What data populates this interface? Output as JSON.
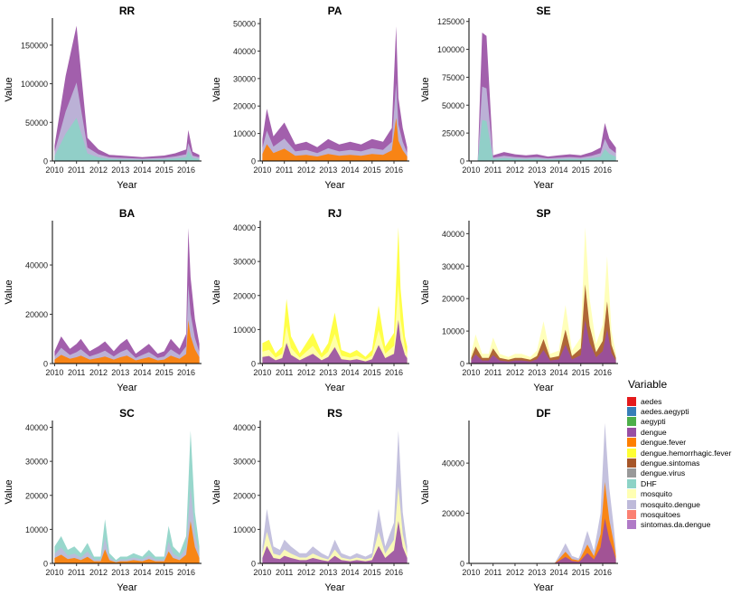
{
  "legend": {
    "title": "Variable",
    "items": [
      {
        "label": "aedes",
        "color": "#E41A1C"
      },
      {
        "label": "aedes.aegypti",
        "color": "#377EB8"
      },
      {
        "label": "aegypti",
        "color": "#4DAF4A"
      },
      {
        "label": "dengue",
        "color": "#984EA3"
      },
      {
        "label": "dengue.fever",
        "color": "#FF7F00"
      },
      {
        "label": "dengue.hemorrhagic.fever",
        "color": "#FFFF33"
      },
      {
        "label": "dengue.sintomas",
        "color": "#A65628"
      },
      {
        "label": "dengue.virus",
        "color": "#999999"
      },
      {
        "label": "DHF",
        "color": "#8DD3C7"
      },
      {
        "label": "mosquito",
        "color": "#FFFFB3"
      },
      {
        "label": "mosquito.dengue",
        "color": "#BEBADA"
      },
      {
        "label": "mosquitoes",
        "color": "#FB8072"
      },
      {
        "label": "sintomas.da.dengue",
        "color": "#B07AC7"
      }
    ]
  },
  "chart_data": [
    {
      "type": "area",
      "title": "RR",
      "xlabel": "Year",
      "ylabel": "Value",
      "xlim": [
        2009.9,
        2016.7
      ],
      "ylim": [
        0,
        185000
      ],
      "yticks": [
        0,
        50000,
        100000,
        150000
      ],
      "xticks": [
        "2010",
        "2011",
        "2012",
        "2013",
        "2014",
        "2015",
        "2016"
      ],
      "dominant": [
        "DHF",
        "mosquito.dengue",
        "dengue"
      ],
      "x": [
        2010.0,
        2010.5,
        2011.0,
        2011.5,
        2012.0,
        2012.5,
        2013.0,
        2013.5,
        2014.0,
        2014.5,
        2015.0,
        2015.5,
        2016.0,
        2016.1,
        2016.3,
        2016.6
      ],
      "y": [
        20000,
        110000,
        175000,
        30000,
        15000,
        8000,
        7000,
        6000,
        5000,
        6000,
        7000,
        10000,
        15000,
        40000,
        12000,
        8000
      ]
    },
    {
      "type": "area",
      "title": "PA",
      "xlabel": "Year",
      "ylabel": "Value",
      "xlim": [
        2009.9,
        2016.7
      ],
      "ylim": [
        0,
        52000
      ],
      "yticks": [
        0,
        10000,
        20000,
        30000,
        40000,
        50000
      ],
      "xticks": [
        "2010",
        "2011",
        "2012",
        "2013",
        "2014",
        "2015",
        "2016"
      ],
      "dominant": [
        "dengue.fever",
        "mosquito.dengue",
        "dengue"
      ],
      "x": [
        2010.0,
        2010.2,
        2010.5,
        2011.0,
        2011.5,
        2012.0,
        2012.5,
        2013.0,
        2013.5,
        2014.0,
        2014.5,
        2015.0,
        2015.5,
        2015.9,
        2016.1,
        2016.2,
        2016.4,
        2016.6
      ],
      "y": [
        8000,
        19000,
        9000,
        14000,
        6000,
        7000,
        5000,
        8000,
        6000,
        7000,
        6000,
        8000,
        7000,
        12000,
        49000,
        23000,
        12000,
        5000
      ]
    },
    {
      "type": "area",
      "title": "SE",
      "xlabel": "Year",
      "ylabel": "Value",
      "xlim": [
        2009.9,
        2016.7
      ],
      "ylim": [
        0,
        128000
      ],
      "yticks": [
        0,
        25000,
        50000,
        75000,
        100000,
        125000
      ],
      "xticks": [
        "2010",
        "2011",
        "2012",
        "2013",
        "2014",
        "2015",
        "2016"
      ],
      "dominant": [
        "DHF",
        "mosquito.dengue",
        "dengue"
      ],
      "x": [
        2010.0,
        2010.3,
        2010.5,
        2010.7,
        2011.0,
        2011.5,
        2012.0,
        2012.5,
        2013.0,
        2013.5,
        2014.0,
        2014.5,
        2015.0,
        2015.5,
        2015.9,
        2016.1,
        2016.3,
        2016.6
      ],
      "y": [
        0,
        0,
        115000,
        112000,
        5000,
        8000,
        6000,
        5000,
        6000,
        4000,
        5000,
        6000,
        5000,
        8000,
        12000,
        34000,
        20000,
        12000
      ]
    },
    {
      "type": "area",
      "title": "BA",
      "xlabel": "Year",
      "ylabel": "Value",
      "xlim": [
        2009.9,
        2016.7
      ],
      "ylim": [
        0,
        58000
      ],
      "yticks": [
        0,
        20000,
        40000
      ],
      "xticks": [
        "2010",
        "2011",
        "2012",
        "2013",
        "2014",
        "2015",
        "2016"
      ],
      "dominant": [
        "dengue.fever",
        "mosquito.dengue",
        "dengue"
      ],
      "x": [
        2010.0,
        2010.3,
        2010.7,
        2011.0,
        2011.2,
        2011.6,
        2012.0,
        2012.3,
        2012.7,
        2013.0,
        2013.3,
        2013.7,
        2014.0,
        2014.3,
        2014.7,
        2015.0,
        2015.3,
        2015.7,
        2016.0,
        2016.1,
        2016.2,
        2016.4,
        2016.6
      ],
      "y": [
        5000,
        11000,
        6000,
        8000,
        10000,
        5000,
        7000,
        9000,
        5000,
        8000,
        10000,
        4000,
        6000,
        8000,
        4000,
        5000,
        10000,
        6000,
        12000,
        55000,
        35000,
        18000,
        8000
      ]
    },
    {
      "type": "area",
      "title": "RJ",
      "xlabel": "Year",
      "ylabel": "Value",
      "xlim": [
        2009.9,
        2016.7
      ],
      "ylim": [
        0,
        42000
      ],
      "yticks": [
        0,
        10000,
        20000,
        30000,
        40000
      ],
      "xticks": [
        "2010",
        "2011",
        "2012",
        "2013",
        "2014",
        "2015",
        "2016"
      ],
      "dominant": [
        "dengue",
        "mosquito",
        "dengue.hemorrhagic.fever"
      ],
      "x": [
        2010.0,
        2010.3,
        2010.6,
        2010.9,
        2011.1,
        2011.3,
        2011.7,
        2012.0,
        2012.3,
        2012.7,
        2013.0,
        2013.3,
        2013.6,
        2014.0,
        2014.3,
        2014.7,
        2015.0,
        2015.3,
        2015.6,
        2016.0,
        2016.2,
        2016.3,
        2016.5,
        2016.6
      ],
      "y": [
        6000,
        7000,
        3000,
        5000,
        19000,
        8000,
        3000,
        6000,
        9000,
        3000,
        6000,
        15000,
        4000,
        3000,
        4000,
        2000,
        4000,
        17000,
        5000,
        9000,
        40000,
        22000,
        8000,
        5000
      ]
    },
    {
      "type": "area",
      "title": "SP",
      "xlabel": "Year",
      "ylabel": "Value",
      "xlim": [
        2009.9,
        2016.7
      ],
      "ylim": [
        0,
        44000
      ],
      "yticks": [
        0,
        10000,
        20000,
        30000,
        40000
      ],
      "xticks": [
        "2010",
        "2011",
        "2012",
        "2013",
        "2014",
        "2015",
        "2016"
      ],
      "dominant": [
        "dengue",
        "dengue.sintomas",
        "mosquito"
      ],
      "x": [
        2010.0,
        2010.2,
        2010.5,
        2010.8,
        2011.0,
        2011.3,
        2011.7,
        2012.0,
        2012.3,
        2012.7,
        2013.0,
        2013.3,
        2013.6,
        2014.0,
        2014.3,
        2014.6,
        2015.0,
        2015.2,
        2015.4,
        2015.7,
        2016.0,
        2016.2,
        2016.4,
        2016.6
      ],
      "y": [
        3000,
        9000,
        3000,
        3000,
        8000,
        3000,
        2000,
        3000,
        3000,
        2000,
        4000,
        13000,
        3000,
        4000,
        18000,
        4000,
        8000,
        42000,
        20000,
        6000,
        12000,
        33000,
        10000,
        3000
      ]
    },
    {
      "type": "area",
      "title": "SC",
      "xlabel": "Year",
      "ylabel": "Value",
      "xlim": [
        2009.9,
        2016.7
      ],
      "ylim": [
        0,
        42000
      ],
      "yticks": [
        0,
        10000,
        20000,
        30000,
        40000
      ],
      "xticks": [
        "2010",
        "2011",
        "2012",
        "2013",
        "2014",
        "2015",
        "2016"
      ],
      "dominant": [
        "dengue.fever",
        "mosquito.dengue",
        "DHF"
      ],
      "x": [
        2010.0,
        2010.3,
        2010.6,
        2010.9,
        2011.2,
        2011.5,
        2011.8,
        2012.1,
        2012.3,
        2012.5,
        2012.8,
        2013.0,
        2013.3,
        2013.6,
        2014.0,
        2014.3,
        2014.6,
        2015.0,
        2015.2,
        2015.4,
        2015.7,
        2016.0,
        2016.2,
        2016.4,
        2016.6
      ],
      "y": [
        5000,
        8000,
        4000,
        5000,
        3000,
        6000,
        2000,
        2000,
        13000,
        3000,
        1000,
        2000,
        2000,
        3000,
        2000,
        4000,
        2000,
        2000,
        11000,
        5000,
        3000,
        8000,
        39000,
        15000,
        5000
      ]
    },
    {
      "type": "area",
      "title": "RS",
      "xlabel": "Year",
      "ylabel": "Value",
      "xlim": [
        2009.9,
        2016.7
      ],
      "ylim": [
        0,
        42000
      ],
      "yticks": [
        0,
        10000,
        20000,
        30000,
        40000
      ],
      "xticks": [
        "2010",
        "2011",
        "2012",
        "2013",
        "2014",
        "2015",
        "2016"
      ],
      "dominant": [
        "dengue",
        "mosquito",
        "mosquito.dengue"
      ],
      "x": [
        2010.0,
        2010.2,
        2010.5,
        2010.8,
        2011.0,
        2011.3,
        2011.7,
        2012.0,
        2012.3,
        2012.7,
        2013.0,
        2013.3,
        2013.6,
        2014.0,
        2014.3,
        2014.7,
        2015.0,
        2015.3,
        2015.6,
        2016.0,
        2016.2,
        2016.4,
        2016.6
      ],
      "y": [
        5000,
        16000,
        5000,
        4000,
        7000,
        5000,
        3000,
        3000,
        5000,
        3000,
        2000,
        7000,
        3000,
        2000,
        3000,
        2000,
        3000,
        16000,
        5000,
        12000,
        39000,
        15000,
        5000
      ]
    },
    {
      "type": "area",
      "title": "DF",
      "xlabel": "Year",
      "ylabel": "Value",
      "xlim": [
        2009.9,
        2016.7
      ],
      "ylim": [
        0,
        57000
      ],
      "yticks": [
        0,
        20000,
        40000
      ],
      "xticks": [
        "2010",
        "2011",
        "2012",
        "2013",
        "2014",
        "2015",
        "2016"
      ],
      "dominant": [
        "dengue",
        "dengue.fever",
        "mosquito.dengue"
      ],
      "x": [
        2010.0,
        2012.0,
        2013.8,
        2014.0,
        2014.3,
        2014.6,
        2014.9,
        2015.0,
        2015.3,
        2015.6,
        2015.9,
        2016.1,
        2016.3,
        2016.5,
        2016.6
      ],
      "y": [
        0,
        0,
        0,
        3000,
        8000,
        3000,
        2000,
        4000,
        13000,
        5000,
        20000,
        56000,
        30000,
        15000,
        5000
      ]
    }
  ]
}
